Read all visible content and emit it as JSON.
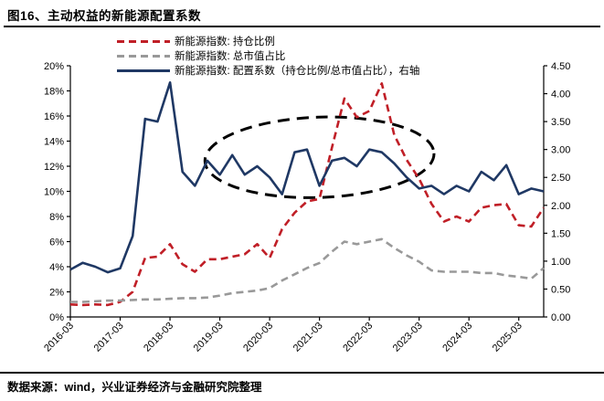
{
  "title": "图16、主动权益的新能源配置系数",
  "footer": {
    "source_text": "数据来源：wind，兴业证券经济与金融研究院整理"
  },
  "colors": {
    "holding_ratio": "#c01f27",
    "market_cap_ratio": "#999999",
    "coefficient": "#1f3864",
    "annotation": "#000000",
    "axis": "#000000"
  },
  "legend": [
    {
      "label": "新能源指数: 持仓比例",
      "style": "dashed",
      "color": "#c01f27"
    },
    {
      "label": "新能源指数: 总市值占比",
      "style": "dashed",
      "color": "#999999"
    },
    {
      "label": "新能源指数: 配置系数（持仓比例/总市值占比），右轴",
      "style": "solid",
      "color": "#1f3864"
    }
  ],
  "chart_data": {
    "type": "line",
    "x": [
      "2016-03",
      "2016-06",
      "2016-09",
      "2016-12",
      "2017-03",
      "2017-06",
      "2017-09",
      "2017-12",
      "2018-03",
      "2018-06",
      "2018-09",
      "2018-12",
      "2019-03",
      "2019-06",
      "2019-09",
      "2019-12",
      "2020-03",
      "2020-06",
      "2020-09",
      "2020-12",
      "2021-03",
      "2021-06",
      "2021-09",
      "2021-12",
      "2022-03",
      "2022-06",
      "2022-09",
      "2022-12",
      "2023-03",
      "2023-06",
      "2023-09",
      "2023-12",
      "2024-03",
      "2024-06",
      "2024-09",
      "2024-12",
      "2025-03",
      "2025-06",
      "2025-09"
    ],
    "x_tick_labels": [
      "2016-03",
      "2017-03",
      "2018-03",
      "2019-03",
      "2020-03",
      "2021-03",
      "2022-03",
      "2023-03",
      "2024-03",
      "2025-03"
    ],
    "series": [
      {
        "name": "新能源指数: 持仓比例",
        "axis": "left",
        "style": "dashed",
        "color": "#c01f27",
        "values": [
          1.0,
          0.95,
          1.0,
          0.95,
          1.2,
          2.0,
          4.7,
          4.8,
          5.8,
          4.2,
          3.6,
          4.6,
          4.6,
          4.8,
          5.0,
          5.8,
          4.7,
          7.0,
          8.3,
          9.2,
          9.4,
          13.5,
          17.4,
          15.9,
          16.4,
          18.6,
          14.5,
          12.5,
          11.0,
          9.0,
          7.6,
          8.0,
          7.6,
          8.7,
          8.9,
          9.0,
          7.3,
          7.2,
          8.7
        ]
      },
      {
        "name": "新能源指数: 总市值占比",
        "axis": "left",
        "style": "dashed",
        "color": "#999999",
        "values": [
          1.2,
          1.2,
          1.25,
          1.3,
          1.3,
          1.35,
          1.4,
          1.4,
          1.45,
          1.5,
          1.5,
          1.55,
          1.7,
          1.9,
          2.0,
          2.1,
          2.3,
          2.9,
          3.4,
          3.9,
          4.3,
          5.2,
          6.0,
          5.8,
          6.0,
          6.2,
          5.5,
          4.9,
          4.4,
          3.7,
          3.6,
          3.6,
          3.6,
          3.5,
          3.5,
          3.3,
          3.2,
          3.05,
          3.9
        ]
      },
      {
        "name": "新能源指数: 配置系数（持仓比例/总市值占比），右轴",
        "axis": "right",
        "style": "solid",
        "color": "#1f3864",
        "values": [
          0.85,
          0.97,
          0.9,
          0.8,
          0.87,
          1.45,
          3.55,
          3.5,
          4.2,
          2.6,
          2.35,
          2.8,
          2.55,
          2.9,
          2.55,
          2.7,
          2.5,
          2.2,
          2.95,
          3.0,
          2.35,
          2.8,
          2.85,
          2.7,
          3.0,
          2.95,
          2.75,
          2.5,
          2.3,
          2.35,
          2.2,
          2.35,
          2.25,
          2.6,
          2.45,
          2.72,
          2.2,
          2.3,
          2.25
        ]
      }
    ],
    "left_axis": {
      "min": 0,
      "max": 20,
      "tick_labels": [
        "0%",
        "2%",
        "4%",
        "6%",
        "8%",
        "10%",
        "12%",
        "14%",
        "16%",
        "18%",
        "20%"
      ]
    },
    "right_axis": {
      "min": 0,
      "max": 4.5,
      "tick_labels": [
        "0.00",
        "0.50",
        "1.00",
        "1.50",
        "2.00",
        "2.50",
        "3.00",
        "3.50",
        "4.00",
        "4.50"
      ]
    },
    "grid": false,
    "legend_position": "top-left-inside",
    "annotation_ellipse": {
      "center_quarter_index": 20,
      "rx_quarters": 9.2,
      "center_right_axis_value": 2.86,
      "ry_right_axis_value": 0.72,
      "rotation_deg": -2,
      "style": "dashed",
      "color": "#000000"
    }
  }
}
